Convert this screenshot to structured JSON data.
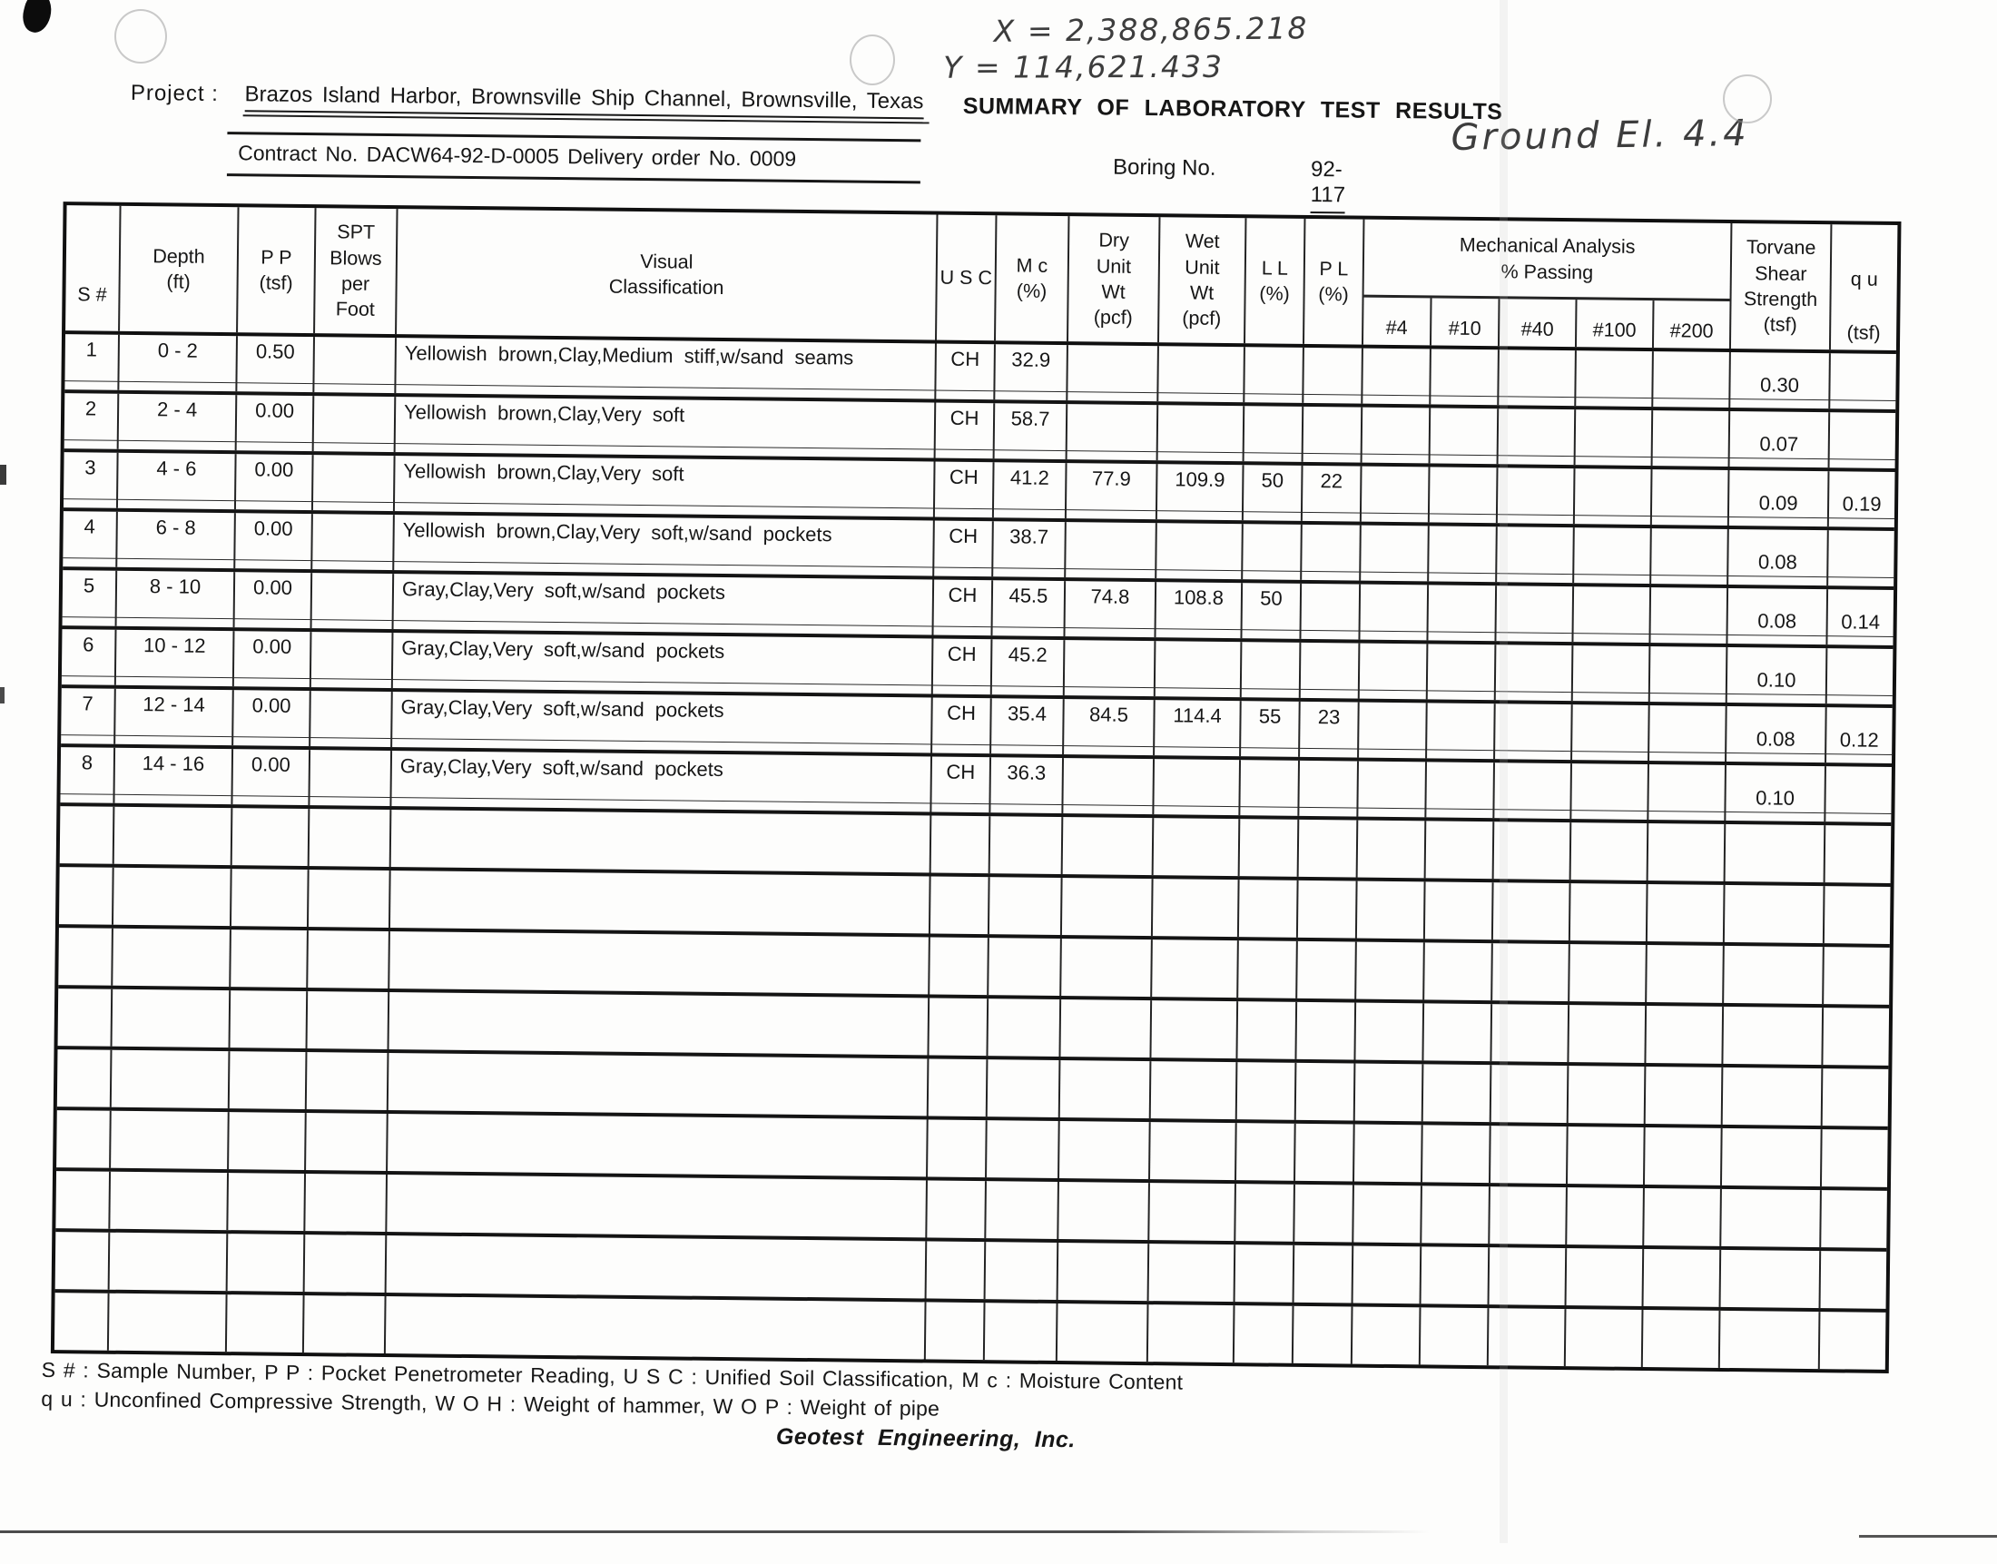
{
  "colors": {
    "ink": "#161616",
    "pencil": "#3d3d3d",
    "paper": "#fdfdfc"
  },
  "annotations": {
    "coord_x": "X = 2,388,865.218",
    "coord_y": "Y = 114,621.433",
    "ground_el": "Ground El. 4.4"
  },
  "header": {
    "project_label": "Project :",
    "project_value": "Brazos Island Harbor, Brownsville Ship Channel, Brownsville, Texas",
    "title": "SUMMARY OF LABORATORY TEST RESULTS",
    "contract_line": "Contract No. DACW64-92-D-0005   Delivery order No. 0009",
    "boring_label": "Boring No.",
    "boring_value": "92-117"
  },
  "table": {
    "headers": {
      "s": "S #",
      "depth": "Depth\n(ft)",
      "pp": "P P\n(tsf)",
      "spt": "SPT\nBlows\nper\nFoot",
      "classification": "Visual\nClassification",
      "usc": "U S C",
      "mc": "M c\n(%)",
      "dry": "Dry\nUnit\nWt\n(pcf)",
      "wet": "Wet\nUnit\nWt\n(pcf)",
      "ll": "L L\n(%)",
      "pl": "P L\n(%)",
      "mech": "Mechanical Analysis\n% Passing",
      "torvane": "Torvane\nShear\nStrength\n(tsf)",
      "qu_top": "q u",
      "qu_bottom": "(tsf)"
    },
    "sieve_columns": [
      "#4",
      "#10",
      "#40",
      "#100",
      "#200"
    ],
    "rows": [
      {
        "s": "1",
        "depth": "0 - 2",
        "pp": "0.50",
        "classification": "Yellowish brown,Clay,Medium stiff,w/sand seams",
        "usc": "CH",
        "mc": "32.9",
        "torvane": "0.30"
      },
      {
        "s": "2",
        "depth": "2 - 4",
        "pp": "0.00",
        "classification": "Yellowish brown,Clay,Very soft",
        "usc": "CH",
        "mc": "58.7",
        "torvane": "0.07"
      },
      {
        "s": "3",
        "depth": "4 - 6",
        "pp": "0.00",
        "classification": "Yellowish brown,Clay,Very soft",
        "usc": "CH",
        "mc": "41.2",
        "dry": "77.9",
        "wet": "109.9",
        "ll": "50",
        "pl": "22",
        "torvane": "0.09",
        "qu": "0.19"
      },
      {
        "s": "4",
        "depth": "6 - 8",
        "pp": "0.00",
        "classification": "Yellowish brown,Clay,Very soft,w/sand pockets",
        "usc": "CH",
        "mc": "38.7",
        "torvane": "0.08"
      },
      {
        "s": "5",
        "depth": "8 - 10",
        "pp": "0.00",
        "classification": "Gray,Clay,Very soft,w/sand pockets",
        "usc": "CH",
        "mc": "45.5",
        "dry": "74.8",
        "wet": "108.8",
        "ll": "50",
        "torvane": "0.08",
        "qu": "0.14"
      },
      {
        "s": "6",
        "depth": "10 - 12",
        "pp": "0.00",
        "classification": "Gray,Clay,Very soft,w/sand pockets",
        "usc": "CH",
        "mc": "45.2",
        "torvane": "0.10"
      },
      {
        "s": "7",
        "depth": "12 - 14",
        "pp": "0.00",
        "classification": "Gray,Clay,Very soft,w/sand pockets",
        "usc": "CH",
        "mc": "35.4",
        "dry": "84.5",
        "wet": "114.4",
        "ll": "55",
        "pl": "23",
        "torvane": "0.08",
        "qu": "0.12"
      },
      {
        "s": "8",
        "depth": "14 - 16",
        "pp": "0.00",
        "classification": "Gray,Clay,Very soft,w/sand pockets",
        "usc": "CH",
        "mc": "36.3",
        "torvane": "0.10"
      }
    ],
    "empty_row_count": 9
  },
  "footer": {
    "legend1": "S # : Sample Number, P P : Pocket Penetrometer Reading, U S C : Unified Soil Classification, M c : Moisture Content",
    "legend2": "q u : Unconfined Compressive Strength, W O H : Weight of hammer, W O P : Weight of pipe",
    "company": "Geotest  Engineering,  Inc."
  }
}
